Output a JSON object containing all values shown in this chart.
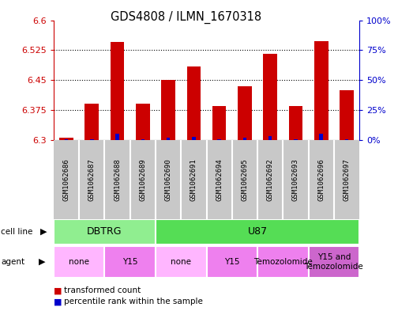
{
  "title": "GDS4808 / ILMN_1670318",
  "samples": [
    "GSM1062686",
    "GSM1062687",
    "GSM1062688",
    "GSM1062689",
    "GSM1062690",
    "GSM1062691",
    "GSM1062694",
    "GSM1062695",
    "GSM1062692",
    "GSM1062693",
    "GSM1062696",
    "GSM1062697"
  ],
  "red_values": [
    6.305,
    6.39,
    6.545,
    6.39,
    6.45,
    6.485,
    6.385,
    6.435,
    6.515,
    6.385,
    6.548,
    6.425
  ],
  "blue_values": [
    6.302,
    6.302,
    6.315,
    6.302,
    6.305,
    6.308,
    6.302,
    6.305,
    6.31,
    6.302,
    6.315,
    6.302
  ],
  "base_value": 6.3,
  "ylim_min": 6.3,
  "ylim_max": 6.6,
  "yticks_left": [
    6.3,
    6.375,
    6.45,
    6.525,
    6.6
  ],
  "yticks_right": [
    0,
    25,
    50,
    75,
    100
  ],
  "cell_line_groups": [
    {
      "label": "DBTRG",
      "start": 0,
      "end": 4,
      "color": "#90EE90"
    },
    {
      "label": "U87",
      "start": 4,
      "end": 12,
      "color": "#55DD55"
    }
  ],
  "agent_groups": [
    {
      "label": "none",
      "start": 0,
      "end": 2,
      "color": "#FFB6FF"
    },
    {
      "label": "Y15",
      "start": 2,
      "end": 4,
      "color": "#EE80EE"
    },
    {
      "label": "none",
      "start": 4,
      "end": 6,
      "color": "#FFB6FF"
    },
    {
      "label": "Y15",
      "start": 6,
      "end": 8,
      "color": "#EE80EE"
    },
    {
      "label": "Temozolomide",
      "start": 8,
      "end": 10,
      "color": "#EE80EE"
    },
    {
      "label": "Y15 and\nTemozolomide",
      "start": 10,
      "end": 12,
      "color": "#CC66CC"
    }
  ],
  "bar_width": 0.55,
  "red_color": "#CC0000",
  "blue_color": "#0000CC",
  "label_bg_color": "#C8C8C8",
  "left_tick_color": "#CC0000",
  "right_tick_color": "#0000CC"
}
